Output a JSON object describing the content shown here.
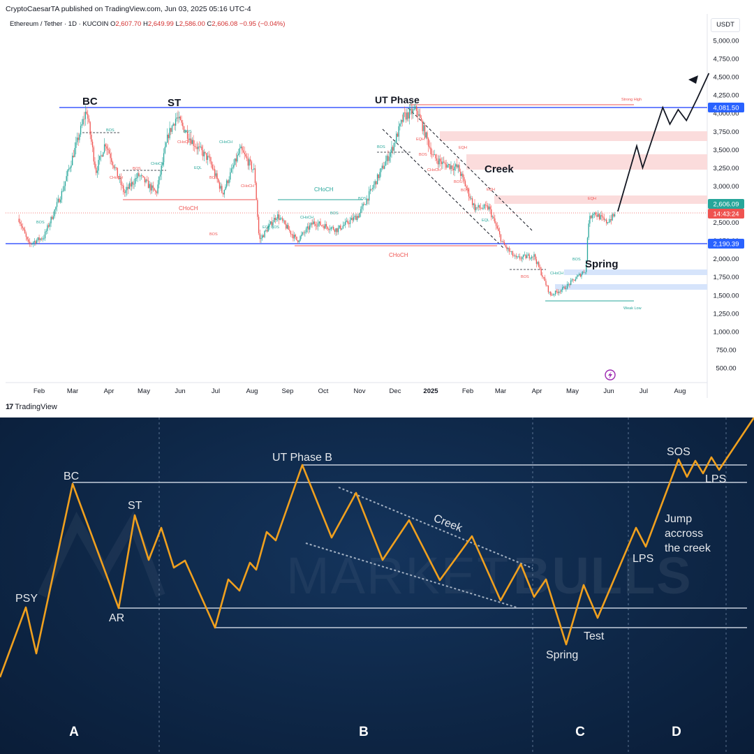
{
  "header": {
    "publish_line": "CryptoCaesarTA published on TradingView.com, Jun 03, 2025 05:16 UTC-4",
    "symbol": "Ethereum / Tether · 1D · KUCOIN",
    "o_label": "O",
    "o_value": "2,607.70",
    "h_label": "H",
    "h_value": "2,649.99",
    "l_label": "L",
    "l_value": "2,586.00",
    "c_label": "C",
    "c_value": "2,606.08",
    "change": "−0.95 (−0.04%)",
    "currency": "USDT",
    "brand": "TradingView",
    "brand_mark": "17"
  },
  "chart_data": [
    {
      "type": "candlestick",
      "title": "Ethereum / Tether · 1D · KUCOIN",
      "x_ticks": [
        "Feb",
        "Mar",
        "Apr",
        "May",
        "Jun",
        "Jul",
        "Aug",
        "Sep",
        "Oct",
        "Nov",
        "Dec",
        "2025",
        "Feb",
        "Mar",
        "Apr",
        "May",
        "Jun",
        "Jul",
        "Aug"
      ],
      "y_ticks": [
        "500.00",
        "750.00",
        "1,000.00",
        "1,250.00",
        "1,500.00",
        "1,750.00",
        "2,000.00",
        "2,250.00",
        "2,500.00",
        "2,750.00",
        "3,000.00",
        "3,250.00",
        "3,500.00",
        "3,750.00",
        "4,000.00",
        "4,250.00",
        "4,500.00",
        "4,750.00",
        "5,000.00"
      ],
      "ylim": [
        400,
        5100
      ],
      "grid": false,
      "colors": {
        "up": "#26a69a",
        "down": "#ef5350",
        "range_line": "#3d5afe",
        "zone_red": "#fbdcdc",
        "zone_blue": "#d6e4fb"
      },
      "price_path": [
        [
          "2024-01-15",
          2550
        ],
        [
          "2024-01-23",
          2200
        ],
        [
          "2024-02-05",
          2300
        ],
        [
          "2024-02-20",
          2900
        ],
        [
          "2024-03-04",
          3600
        ],
        [
          "2024-03-12",
          4050
        ],
        [
          "2024-03-20",
          3200
        ],
        [
          "2024-03-28",
          3600
        ],
        [
          "2024-04-13",
          2900
        ],
        [
          "2024-04-25",
          3150
        ],
        [
          "2024-05-10",
          2900
        ],
        [
          "2024-05-20",
          3700
        ],
        [
          "2024-05-27",
          3950
        ],
        [
          "2024-06-10",
          3600
        ],
        [
          "2024-06-24",
          3350
        ],
        [
          "2024-07-05",
          2900
        ],
        [
          "2024-07-20",
          3500
        ],
        [
          "2024-08-01",
          3200
        ],
        [
          "2024-08-05",
          2250
        ],
        [
          "2024-08-20",
          2600
        ],
        [
          "2024-09-06",
          2250
        ],
        [
          "2024-09-20",
          2500
        ],
        [
          "2024-10-10",
          2400
        ],
        [
          "2024-10-28",
          2600
        ],
        [
          "2024-11-08",
          2950
        ],
        [
          "2024-11-25",
          3500
        ],
        [
          "2024-12-05",
          3950
        ],
        [
          "2024-12-16",
          4050
        ],
        [
          "2024-12-30",
          3400
        ],
        [
          "2025-01-08",
          3300
        ],
        [
          "2025-01-20",
          3250
        ],
        [
          "2025-02-03",
          2700
        ],
        [
          "2025-02-15",
          2700
        ],
        [
          "2025-02-27",
          2200
        ],
        [
          "2025-03-10",
          2000
        ],
        [
          "2025-03-25",
          2050
        ],
        [
          "2025-04-08",
          1500
        ],
        [
          "2025-04-20",
          1600
        ],
        [
          "2025-05-08",
          1850
        ],
        [
          "2025-05-10",
          2500
        ],
        [
          "2025-05-14",
          2650
        ],
        [
          "2025-05-25",
          2500
        ],
        [
          "2025-06-02",
          2606
        ]
      ],
      "levels": [
        {
          "label": "4,081.50",
          "value": 4081.5
        },
        {
          "label": "2,190.39",
          "value": 2190.39
        }
      ],
      "last_price": {
        "label": "2,606.09",
        "countdown": "14:43:24",
        "value": 2606.09
      },
      "annotations": [
        "BC",
        "ST",
        "UT Phase",
        "Creek",
        "Spring"
      ],
      "structure_labels": [
        "BOS",
        "CHoCH",
        "EQL",
        "EQH",
        "Strong High",
        "Weak Low"
      ],
      "projection": [
        [
          "2025-06-04",
          2650
        ],
        [
          "2025-06-20",
          3550
        ],
        [
          "2025-06-25",
          3250
        ],
        [
          "2025-07-12",
          4080
        ],
        [
          "2025-07-18",
          3850
        ],
        [
          "2025-07-25",
          4050
        ],
        [
          "2025-08-01",
          3900
        ],
        [
          "2025-08-10",
          4200
        ],
        [
          "2025-08-20",
          4550
        ]
      ]
    },
    {
      "type": "line",
      "labels": [
        "PSY",
        "BC",
        "AR",
        "ST",
        "UT Phase B",
        "Creek",
        "Spring",
        "Test",
        "LPS",
        "Jump accross the creek",
        "SOS",
        "LPS"
      ],
      "phases": [
        "A",
        "B",
        "C",
        "D"
      ],
      "watermark": "MARKETBULLS"
    }
  ],
  "top_chart": {
    "label_bc": "BC",
    "label_st": "ST",
    "label_ut": "UT Phase",
    "label_creek": "Creek",
    "label_spring": "Spring",
    "strong_high": "Strong High",
    "weak_low": "Weak Low",
    "bos": "BOS",
    "choch": "CHoCH",
    "eql": "EQL",
    "eqh": "EQH",
    "eql_bos": "EQL BOS",
    "months": [
      "Feb",
      "Mar",
      "Apr",
      "May",
      "Jun",
      "Jul",
      "Aug",
      "Sep",
      "Oct",
      "Nov",
      "Dec",
      "2025",
      "Feb",
      "Mar",
      "Apr",
      "May",
      "Jun",
      "Jul",
      "Aug"
    ],
    "prices": [
      "5,000.00",
      "4,750.00",
      "4,500.00",
      "4,250.00",
      "4,000.00",
      "3,750.00",
      "3,500.00",
      "3,250.00",
      "3,000.00",
      "2,750.00",
      "2,500.00",
      "2,250.00",
      "2,000.00",
      "1,750.00",
      "1,500.00",
      "1,250.00",
      "1,000.00",
      "750.00",
      "500.00"
    ],
    "level_high": "4,081.50",
    "level_low": "2,190.39",
    "last_price": "2,606.09",
    "countdown": "14:43:24"
  },
  "bottom_chart": {
    "psy": "PSY",
    "bc": "BC",
    "ar": "AR",
    "st": "ST",
    "ut": "UT Phase B",
    "creek": "Creek",
    "spring": "Spring",
    "test": "Test",
    "lps1": "LPS",
    "jump_1": "Jump",
    "jump_2": "accross",
    "jump_3": "the creek",
    "sos": "SOS",
    "lps2": "LPS",
    "phase_a": "A",
    "phase_b": "B",
    "phase_c": "C",
    "phase_d": "D",
    "watermark": "MARKETBULLS",
    "watermark_light": "MARKET",
    "watermark_bold": "BULLS"
  }
}
